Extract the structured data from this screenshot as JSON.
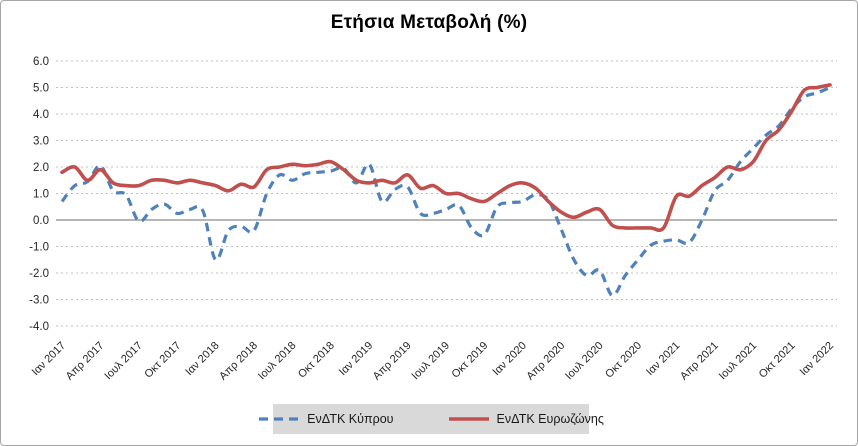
{
  "chart_data": {
    "type": "line",
    "title": "Ετήσια Μεταβολή (%)",
    "x_frequency": "monthly",
    "x_start": "Ιαν 2017",
    "x_end": "Ιαν 2022",
    "x_tick_step_months": 3,
    "x_tick_labels": [
      "Ιαν 2017",
      "Απρ 2017",
      "Ιουλ 2017",
      "Οκτ 2017",
      "Ιαν 2018",
      "Απρ 2018",
      "Ιουλ 2018",
      "Οκτ 2018",
      "Ιαν 2019",
      "Απρ 2019",
      "Ιουλ 2019",
      "Οκτ 2019",
      "Ιαν 2020",
      "Απρ 2020",
      "Ιουλ 2020",
      "Οκτ 2020",
      "Ιαν 2021",
      "Απρ 2021",
      "Ιουλ 2021",
      "Οκτ 2021",
      "Ιαν 2022"
    ],
    "ylim": [
      -4.0,
      6.0
    ],
    "y_step": 1.0,
    "y_tick_labels": [
      "6.0",
      "5.0",
      "4.0",
      "3.0",
      "2.0",
      "1.0",
      "0.0",
      "-1.0",
      "-2.0",
      "-3.0",
      "-4.0"
    ],
    "grid": true,
    "smoothed_lines": true,
    "legend_position": "bottom",
    "series": [
      {
        "name": "ΕνΔΤΚ Κύπρου",
        "color": "#4F81BD",
        "style": "dashed",
        "values": [
          0.7,
          1.3,
          1.45,
          2.05,
          1.1,
          0.95,
          -0.05,
          0.4,
          0.6,
          0.25,
          0.4,
          0.35,
          -1.5,
          -0.4,
          -0.25,
          -0.4,
          1.0,
          1.7,
          1.5,
          1.75,
          1.8,
          1.85,
          1.95,
          1.4,
          2.1,
          0.7,
          1.15,
          1.25,
          0.25,
          0.25,
          0.4,
          0.55,
          -0.3,
          -0.55,
          0.5,
          0.65,
          0.7,
          0.95,
          0.75,
          -0.35,
          -1.5,
          -2.1,
          -1.9,
          -2.85,
          -2.1,
          -1.5,
          -0.95,
          -0.8,
          -0.75,
          -0.85,
          0.0,
          1.1,
          1.5,
          2.2,
          2.7,
          3.2,
          3.55,
          4.2,
          4.65,
          4.8,
          5.0
        ]
      },
      {
        "name": "ΕνΔΤΚ Ευρωζώνης",
        "color": "#C0504D",
        "style": "solid",
        "values": [
          1.8,
          2.0,
          1.5,
          1.9,
          1.4,
          1.3,
          1.3,
          1.5,
          1.5,
          1.4,
          1.5,
          1.4,
          1.3,
          1.1,
          1.35,
          1.25,
          1.9,
          2.0,
          2.1,
          2.05,
          2.1,
          2.2,
          1.9,
          1.5,
          1.4,
          1.5,
          1.4,
          1.7,
          1.2,
          1.3,
          1.0,
          1.0,
          0.8,
          0.7,
          1.0,
          1.3,
          1.4,
          1.2,
          0.7,
          0.3,
          0.1,
          0.3,
          0.4,
          -0.2,
          -0.3,
          -0.3,
          -0.3,
          -0.3,
          0.9,
          0.9,
          1.3,
          1.6,
          2.0,
          1.9,
          2.2,
          3.0,
          3.4,
          4.1,
          4.9,
          5.0,
          5.1
        ]
      }
    ],
    "colors": {
      "grid": "#bfbfbf",
      "zero_line": "#8a8a8a",
      "axis_text": "#262626",
      "legend_bg": "#d9d9d9",
      "background": "#ffffff"
    }
  }
}
